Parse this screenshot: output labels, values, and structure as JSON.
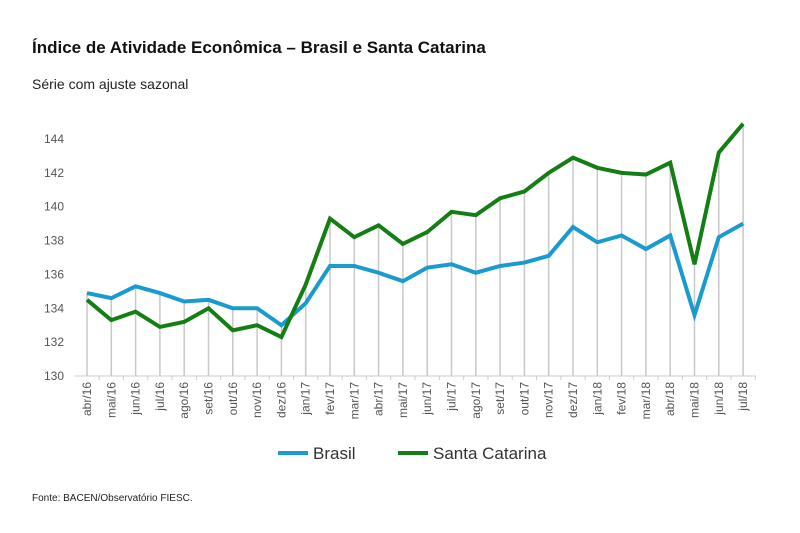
{
  "chart_data": {
    "type": "line",
    "title": "Índice de Atividade Econômica – Brasil e Santa Catarina",
    "subtitle": "Série com ajuste sazonal",
    "source": "Fonte: BACEN/Observatório FIESC.",
    "xlabel": "",
    "ylabel": "",
    "ylim": [
      130,
      144
    ],
    "yticks": [
      130,
      132,
      134,
      136,
      138,
      140,
      142,
      144
    ],
    "grid": "vertical",
    "legend": "bottom",
    "categories": [
      "abr/16",
      "mai/16",
      "jun/16",
      "jul/16",
      "ago/16",
      "set/16",
      "out/16",
      "nov/16",
      "dez/16",
      "jan/17",
      "fev/17",
      "mar/17",
      "abr/17",
      "mai/17",
      "jun/17",
      "jul/17",
      "ago/17",
      "set/17",
      "out/17",
      "nov/17",
      "dez/17",
      "jan/18",
      "fev/18",
      "mar/18",
      "abr/18",
      "mai/18",
      "jun/18",
      "jul/18"
    ],
    "series": [
      {
        "name": "Brasil",
        "color": "#1a9bd0",
        "values": [
          134.9,
          134.6,
          135.3,
          134.9,
          134.4,
          134.5,
          134.0,
          134.0,
          133.0,
          134.3,
          136.5,
          136.5,
          136.1,
          135.6,
          136.4,
          136.6,
          136.1,
          136.5,
          136.7,
          137.1,
          138.8,
          137.9,
          138.3,
          137.5,
          138.3,
          133.6,
          138.2,
          139.0
        ]
      },
      {
        "name": "Santa Catarina",
        "color": "#137e13",
        "values": [
          134.5,
          133.3,
          133.8,
          132.9,
          133.2,
          134.0,
          132.7,
          133.0,
          132.3,
          135.4,
          139.3,
          138.2,
          138.9,
          137.8,
          138.5,
          139.7,
          139.5,
          140.5,
          140.9,
          142.0,
          142.9,
          142.3,
          142.0,
          141.9,
          142.6,
          136.6,
          143.2,
          144.9
        ]
      }
    ]
  }
}
